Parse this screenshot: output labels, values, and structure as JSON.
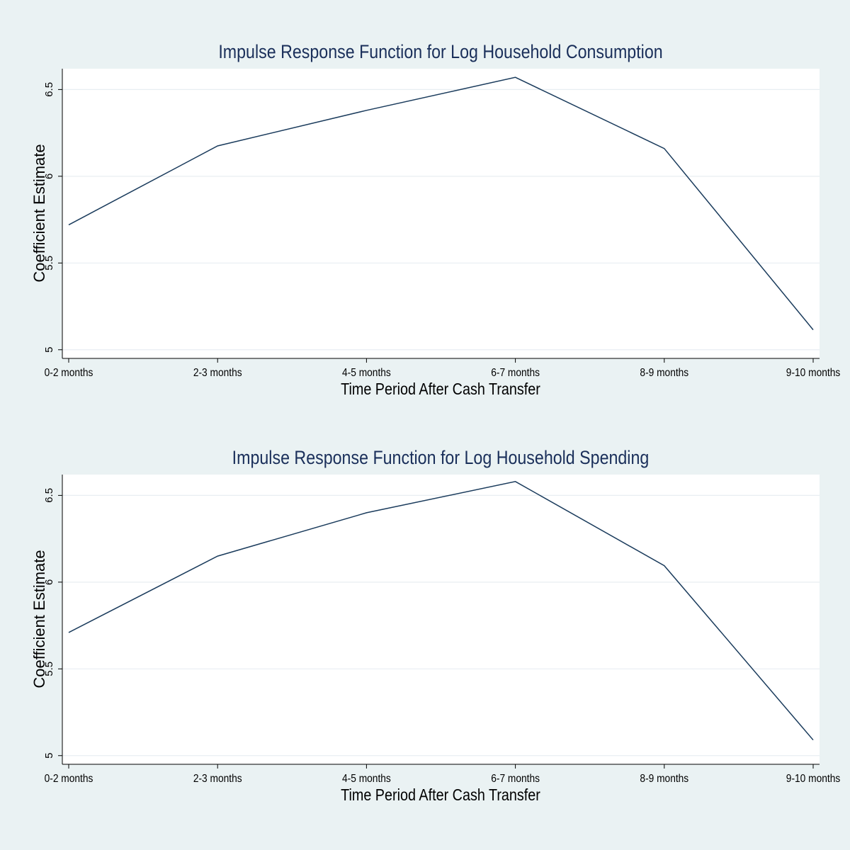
{
  "chart_data": [
    {
      "type": "line",
      "title": "Impulse Response Function for Log Household Consumption",
      "xlabel": "Time Period After Cash Transfer",
      "ylabel": "Coefficient Estimate",
      "categories": [
        "0-2 months",
        "2-3 months",
        "4-5 months",
        "6-7 months",
        "8-9 months",
        "9-10 months"
      ],
      "series": [
        {
          "values": [
            5.72,
            6.175,
            6.38,
            6.57,
            6.16,
            5.115
          ]
        }
      ],
      "yticks": [
        "5",
        "5.5",
        "6",
        "6.5"
      ],
      "ytick_values": [
        5,
        5.5,
        6,
        6.5
      ],
      "ylim": [
        4.95,
        6.62
      ],
      "grid": true,
      "line_color": "#1a3b5c",
      "grid_color": "#e8eef2",
      "background": "#eaf2f3",
      "plot_background": "#ffffff",
      "title_color": "#1a2f5a"
    },
    {
      "type": "line",
      "title": "Impulse Response Function for Log Household Spending",
      "xlabel": "Time Period After Cash Transfer",
      "ylabel": "Coefficient Estimate",
      "categories": [
        "0-2 months",
        "2-3 months",
        "4-5 months",
        "6-7 months",
        "8-9 months",
        "9-10 months"
      ],
      "series": [
        {
          "values": [
            5.71,
            6.15,
            6.4,
            6.58,
            6.095,
            5.09
          ]
        }
      ],
      "yticks": [
        "5",
        "5.5",
        "6",
        "6.5"
      ],
      "ytick_values": [
        5,
        5.5,
        6,
        6.5
      ],
      "ylim": [
        4.95,
        6.62
      ],
      "grid": true,
      "line_color": "#1a3b5c",
      "grid_color": "#e8eef2",
      "background": "#eaf2f3",
      "plot_background": "#ffffff",
      "title_color": "#1a2f5a"
    }
  ]
}
